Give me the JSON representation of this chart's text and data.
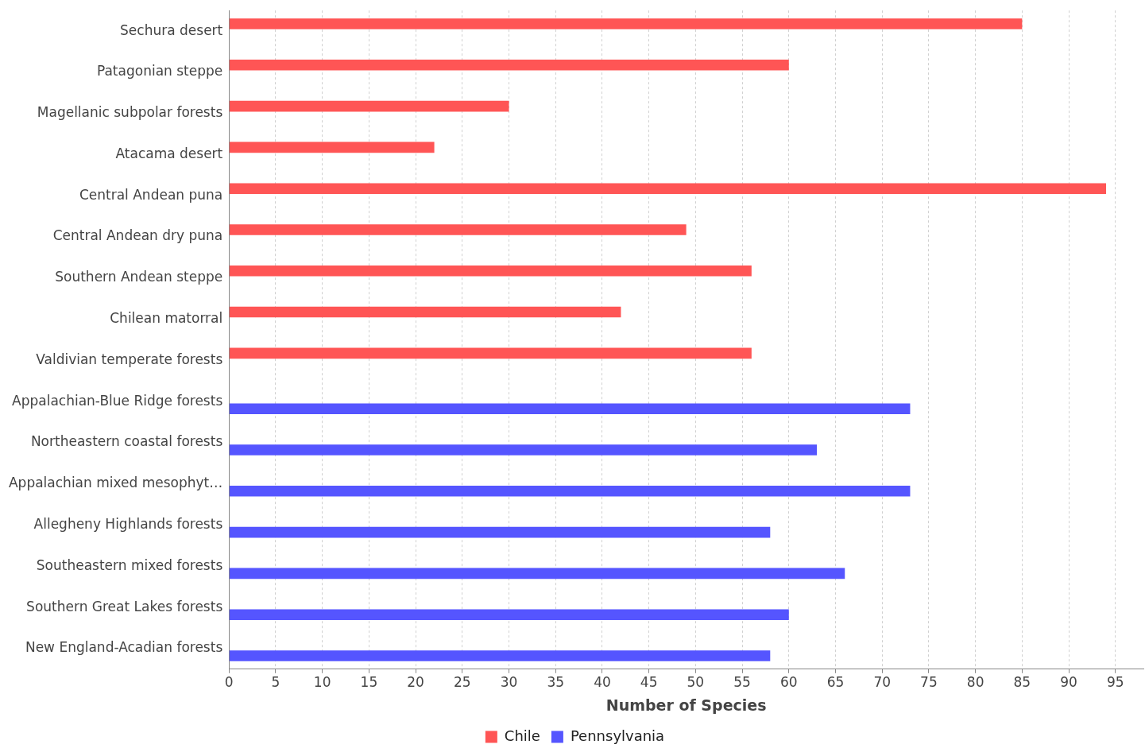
{
  "chart_data": {
    "type": "bar",
    "orientation": "horizontal",
    "xlabel": "Number of Species",
    "categories": [
      "Sechura desert",
      "Patagonian steppe",
      "Magellanic subpolar forests",
      "Atacama desert",
      "Central Andean puna",
      "Central Andean dry puna",
      "Southern Andean steppe",
      "Chilean matorral",
      "Valdivian temperate forests",
      "Appalachian-Blue Ridge forests",
      "Northeastern coastal forests",
      "Appalachian mixed mesophyt…",
      "Allegheny Highlands forests",
      "Southeastern mixed forests",
      "Southern Great Lakes forests",
      "New England-Acadian forests"
    ],
    "series": [
      {
        "name": "Chile",
        "color": "#ff5555",
        "values": [
          85,
          60,
          30,
          22,
          94,
          49,
          56,
          42,
          56,
          null,
          null,
          null,
          null,
          null,
          null,
          null
        ]
      },
      {
        "name": "Pennsylvania",
        "color": "#5555ff",
        "values": [
          null,
          null,
          null,
          null,
          null,
          null,
          null,
          null,
          null,
          73,
          63,
          73,
          58,
          66,
          60,
          58
        ]
      }
    ],
    "xlim": [
      0,
      98
    ],
    "xticks": [
      0,
      5,
      10,
      15,
      20,
      25,
      30,
      35,
      40,
      45,
      50,
      55,
      60,
      65,
      70,
      75,
      80,
      85,
      90,
      95
    ],
    "grid": "x",
    "legend": "bottom"
  }
}
